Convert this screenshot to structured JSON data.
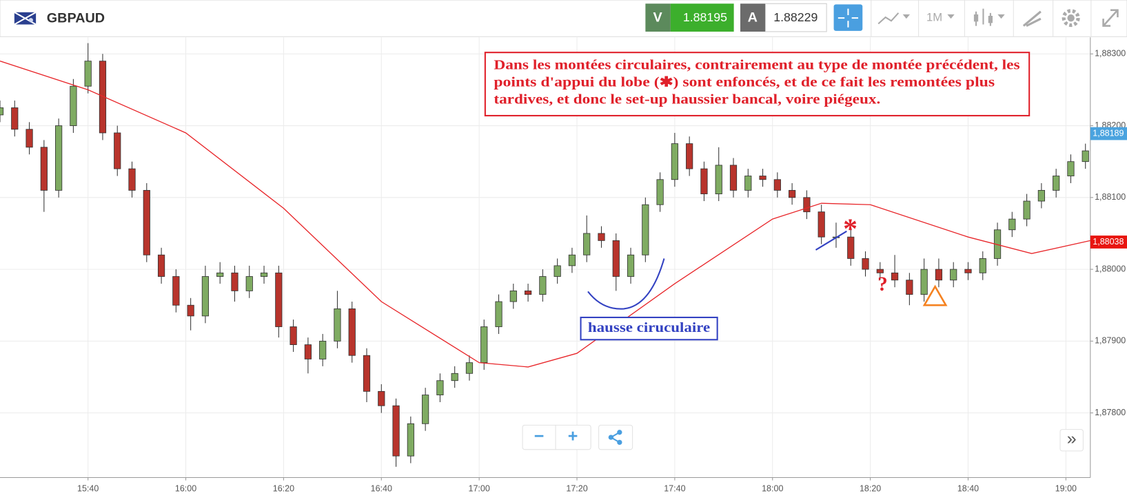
{
  "header": {
    "symbol": "GBPAUD",
    "sell_label": "V",
    "sell_price": "1.88195",
    "buy_label": "A",
    "buy_price": "1.88229",
    "timeframe": "1M"
  },
  "annotations": {
    "note": [
      "Dans les montées circulaires, contrairement au type de montée précédent, les",
      "points d'appui du lobe  (✱) sont  enfoncés, et de ce fait les remontées plus",
      "tardives, et donc le set-up haussier bancal, voire piégeux."
    ],
    "pattern_label": "hausse ciruculaire",
    "star": "*",
    "question": "?"
  },
  "controls": {
    "zoom_out": "−",
    "zoom_in": "+",
    "expand": "»"
  },
  "chart_data": {
    "type": "candlestick",
    "up_color": "#7fab62",
    "down_color": "#b8342c",
    "grid": true,
    "xlim": [
      "15:22",
      "19:05"
    ],
    "xticks": [
      "15:40",
      "16:00",
      "16:20",
      "16:40",
      "17:00",
      "17:20",
      "17:40",
      "18:00",
      "18:20",
      "18:40",
      "19:00"
    ],
    "ylim": [
      1.8771,
      1.88323
    ],
    "yticks": [
      {
        "value": 1.883,
        "label": "1,88300"
      },
      {
        "value": 1.882,
        "label": "1,88200"
      },
      {
        "value": 1.881,
        "label": "1,88100"
      },
      {
        "value": 1.88,
        "label": "1,88000"
      },
      {
        "value": 1.879,
        "label": "1,87900"
      },
      {
        "value": 1.878,
        "label": "1,87800"
      }
    ],
    "x": [
      "15:22",
      "15:25",
      "15:28",
      "15:31",
      "15:34",
      "15:37",
      "15:40",
      "15:43",
      "15:46",
      "15:49",
      "15:52",
      "15:55",
      "15:58",
      "16:01",
      "16:04",
      "16:07",
      "16:10",
      "16:13",
      "16:16",
      "16:19",
      "16:22",
      "16:25",
      "16:28",
      "16:31",
      "16:34",
      "16:37",
      "16:40",
      "16:43",
      "16:46",
      "16:49",
      "16:52",
      "16:55",
      "16:58",
      "17:01",
      "17:04",
      "17:07",
      "17:10",
      "17:13",
      "17:16",
      "17:19",
      "17:22",
      "17:25",
      "17:28",
      "17:31",
      "17:34",
      "17:37",
      "17:40",
      "17:43",
      "17:46",
      "17:49",
      "17:52",
      "17:55",
      "17:58",
      "18:01",
      "18:04",
      "18:07",
      "18:10",
      "18:13",
      "18:16",
      "18:19",
      "18:22",
      "18:25",
      "18:28",
      "18:31",
      "18:34",
      "18:37",
      "18:40",
      "18:43",
      "18:46",
      "18:49",
      "18:52",
      "18:55",
      "18:58",
      "19:01",
      "19:04"
    ],
    "open": [
      1.88215,
      1.88225,
      1.88195,
      1.8817,
      1.8811,
      1.882,
      1.88255,
      1.8829,
      1.8819,
      1.8814,
      1.8811,
      1.8802,
      1.8799,
      1.8795,
      1.87935,
      1.8799,
      1.87995,
      1.8797,
      1.8799,
      1.87995,
      1.8792,
      1.87895,
      1.87875,
      1.879,
      1.87945,
      1.8788,
      1.8783,
      1.8781,
      1.8774,
      1.87785,
      1.87825,
      1.87845,
      1.87855,
      1.8787,
      1.8792,
      1.87955,
      1.8797,
      1.87965,
      1.8799,
      1.88005,
      1.8802,
      1.8805,
      1.8804,
      1.8799,
      1.8802,
      1.8809,
      1.88125,
      1.88175,
      1.8814,
      1.88105,
      1.88145,
      1.8811,
      1.8813,
      1.88125,
      1.8811,
      1.881,
      1.8808,
      1.88045,
      1.88045,
      1.88015,
      1.88,
      1.87995,
      1.87985,
      1.87965,
      1.88,
      1.87985,
      1.88,
      1.87995,
      1.88015,
      1.88055,
      1.8807,
      1.88095,
      1.8811,
      1.8813,
      1.8815
    ],
    "high": [
      1.88235,
      1.88235,
      1.88205,
      1.8818,
      1.8821,
      1.88265,
      1.88315,
      1.883,
      1.882,
      1.8815,
      1.8812,
      1.8803,
      1.88,
      1.8796,
      1.88005,
      1.8801,
      1.88005,
      1.88005,
      1.88005,
      1.88005,
      1.8793,
      1.87905,
      1.8791,
      1.8797,
      1.87955,
      1.8789,
      1.8784,
      1.8782,
      1.87795,
      1.87835,
      1.87855,
      1.87865,
      1.8788,
      1.8793,
      1.87965,
      1.8798,
      1.8798,
      1.88,
      1.88015,
      1.8803,
      1.88075,
      1.8806,
      1.8805,
      1.8803,
      1.881,
      1.88135,
      1.8819,
      1.88185,
      1.8815,
      1.8817,
      1.88155,
      1.8814,
      1.8814,
      1.88135,
      1.8812,
      1.8811,
      1.8809,
      1.88065,
      1.88055,
      1.88025,
      1.8801,
      1.8802,
      1.87995,
      1.88015,
      1.88015,
      1.8801,
      1.8801,
      1.88025,
      1.88065,
      1.8808,
      1.88105,
      1.8812,
      1.8814,
      1.8816,
      1.88175
    ],
    "low": [
      1.88205,
      1.88185,
      1.8816,
      1.8808,
      1.881,
      1.8819,
      1.88245,
      1.8818,
      1.8813,
      1.881,
      1.8801,
      1.8798,
      1.8794,
      1.87915,
      1.87925,
      1.8798,
      1.87955,
      1.8796,
      1.8798,
      1.87905,
      1.87885,
      1.87855,
      1.87865,
      1.8789,
      1.8787,
      1.87815,
      1.878,
      1.87725,
      1.8773,
      1.87775,
      1.87815,
      1.87835,
      1.87845,
      1.8786,
      1.8791,
      1.87945,
      1.87955,
      1.87955,
      1.8798,
      1.87995,
      1.8801,
      1.8803,
      1.8797,
      1.8798,
      1.8801,
      1.8808,
      1.88115,
      1.8813,
      1.88095,
      1.88095,
      1.881,
      1.881,
      1.88115,
      1.881,
      1.8809,
      1.8807,
      1.88035,
      1.8803,
      1.88005,
      1.8799,
      1.87985,
      1.87975,
      1.8795,
      1.87955,
      1.87975,
      1.87975,
      1.87985,
      1.87985,
      1.88005,
      1.88045,
      1.8806,
      1.88085,
      1.881,
      1.8812,
      1.8814
    ],
    "close": [
      1.88225,
      1.88195,
      1.8817,
      1.8811,
      1.882,
      1.88255,
      1.8829,
      1.8819,
      1.8814,
      1.8811,
      1.8802,
      1.8799,
      1.8795,
      1.87935,
      1.8799,
      1.87995,
      1.8797,
      1.8799,
      1.87995,
      1.8792,
      1.87895,
      1.87875,
      1.879,
      1.87945,
      1.8788,
      1.8783,
      1.8781,
      1.8774,
      1.87785,
      1.87825,
      1.87845,
      1.87855,
      1.8787,
      1.8792,
      1.87955,
      1.8797,
      1.87965,
      1.8799,
      1.88005,
      1.8802,
      1.8805,
      1.8804,
      1.8799,
      1.8802,
      1.8809,
      1.88125,
      1.88175,
      1.8814,
      1.88105,
      1.88145,
      1.8811,
      1.8813,
      1.88125,
      1.8811,
      1.881,
      1.8808,
      1.88045,
      1.88045,
      1.88015,
      1.88,
      1.87995,
      1.87985,
      1.87965,
      1.88,
      1.87985,
      1.88,
      1.87995,
      1.88015,
      1.88055,
      1.8807,
      1.88095,
      1.8811,
      1.8813,
      1.8815,
      1.88165
    ],
    "lines": [
      {
        "color": "#e8262a",
        "x": [
          "15:22",
          "15:40",
          "16:00",
          "16:20",
          "16:40",
          "17:00",
          "17:10",
          "17:20",
          "17:40",
          "18:00",
          "18:10",
          "18:20",
          "18:40",
          "18:53",
          "19:05"
        ],
        "values": [
          1.8829,
          1.8825,
          1.8819,
          1.88085,
          1.87955,
          1.8787,
          1.87864,
          1.87883,
          1.8798,
          1.8807,
          1.88092,
          1.8809,
          1.88045,
          1.88022,
          1.8804
        ]
      }
    ],
    "price_tags": [
      {
        "value": 1.88189,
        "label": "1,88189",
        "color": "#4aa3df"
      },
      {
        "value": 1.88038,
        "label": "1,88038",
        "color": "#e8150f"
      }
    ]
  }
}
